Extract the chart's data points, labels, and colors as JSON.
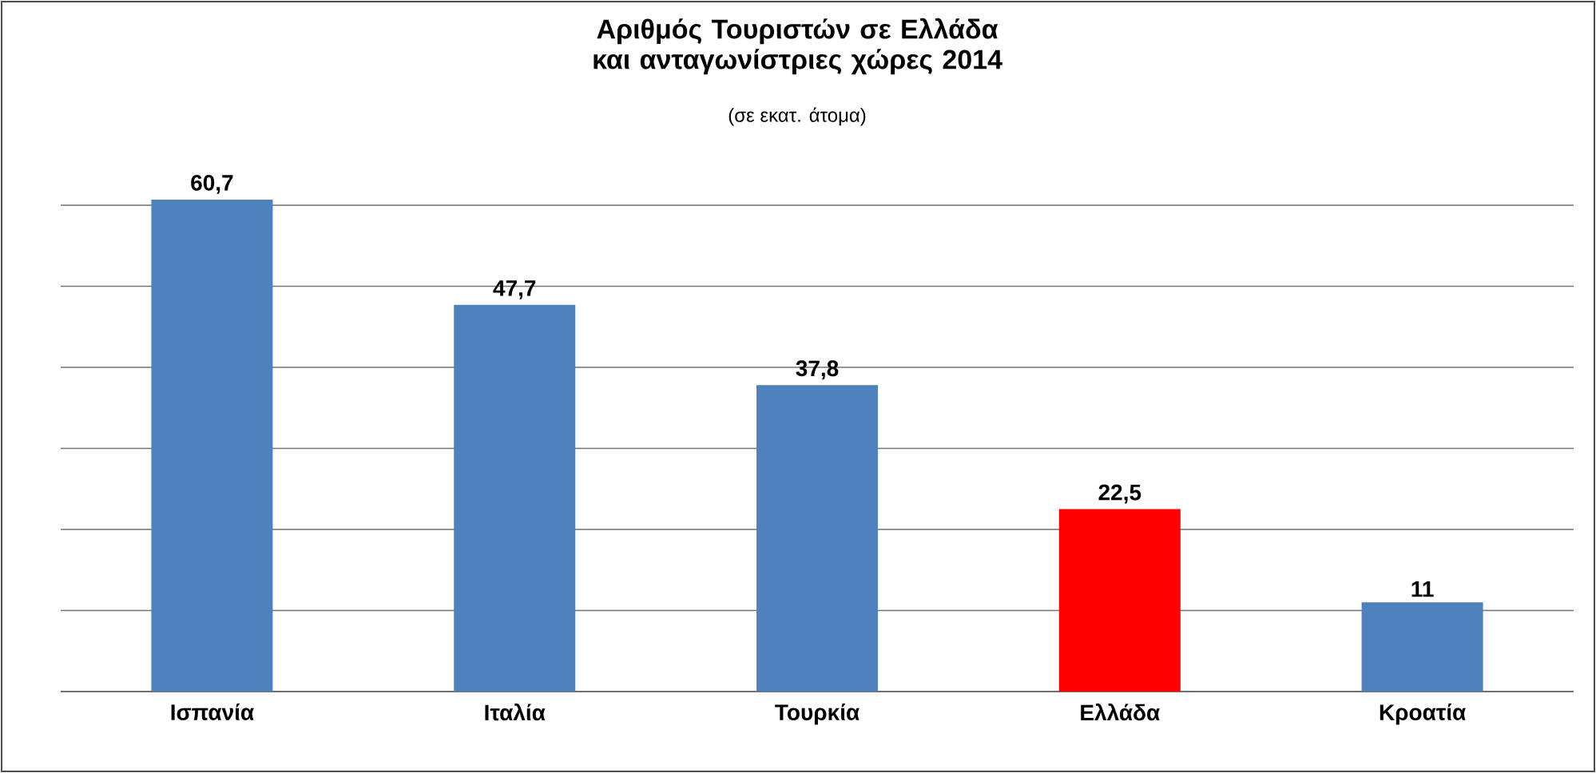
{
  "chart_data": {
    "type": "bar",
    "title": "Αριθμός Τουριστών σε Ελλάδα και ανταγωνίστριες χώρες 2014",
    "subtitle": "(σε εκατ. άτομα)",
    "categories": [
      "Ισπανία",
      "Ιταλία",
      "Τουρκία",
      "Ελλάδα",
      "Κροατία"
    ],
    "values": [
      60.7,
      47.7,
      37.8,
      22.5,
      11
    ],
    "value_labels": [
      "60,7",
      "47,7",
      "37,8",
      "22,5",
      "11"
    ],
    "colors": [
      "#4f81bd",
      "#4f81bd",
      "#4f81bd",
      "#ff0000",
      "#4f81bd"
    ],
    "grid": "y",
    "tick_labels": "x"
  }
}
